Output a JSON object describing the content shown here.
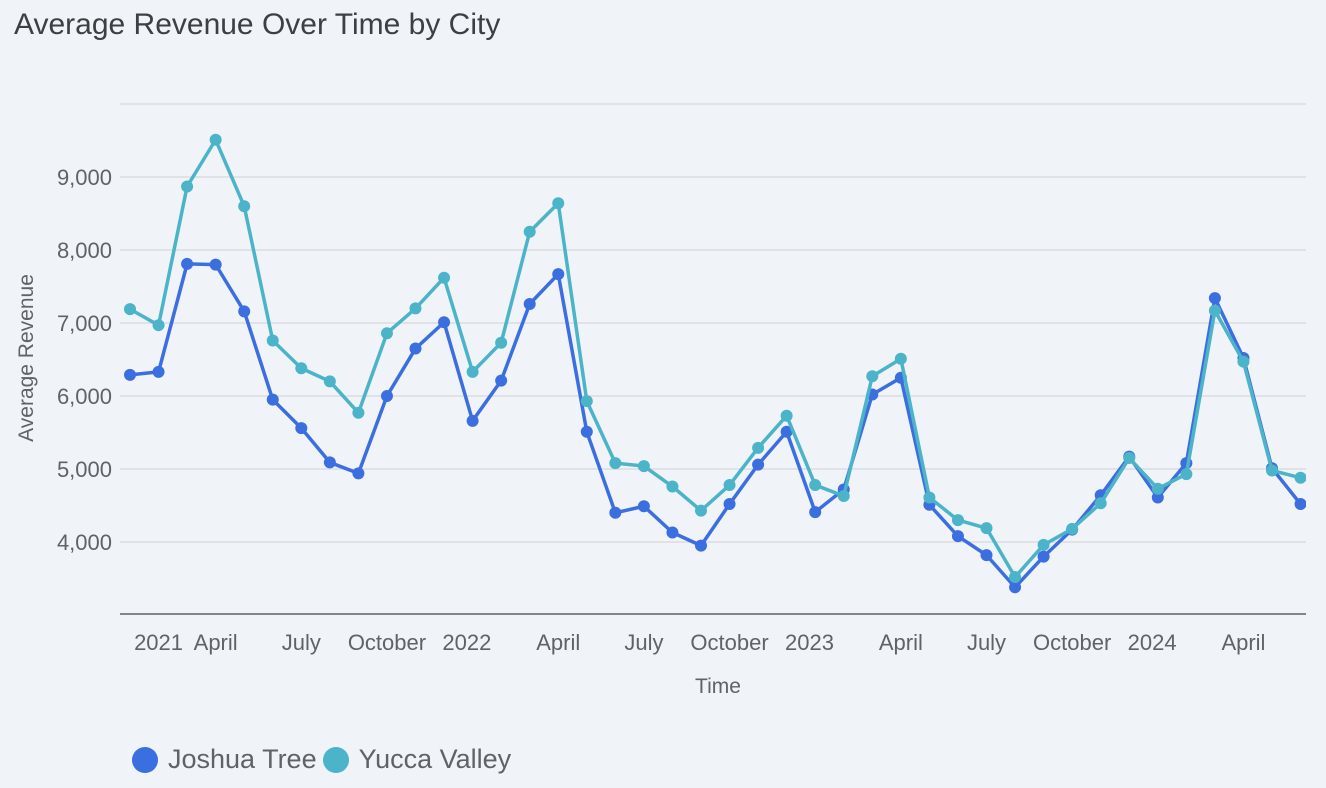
{
  "chart_data": {
    "type": "line",
    "title": "Average Revenue Over Time by City",
    "xlabel": "Time",
    "ylabel": "Average Revenue",
    "ylim": [
      3000,
      10000
    ],
    "yticks": [
      4000,
      5000,
      6000,
      7000,
      8000,
      9000
    ],
    "ytick_labels": [
      "4,000",
      "5,000",
      "6,000",
      "7,000",
      "8,000",
      "9,000"
    ],
    "grid": true,
    "legend_position": "bottom-left",
    "x_start": "2021-01",
    "x_count": 42,
    "xtick_labels": [
      {
        "label": "2021",
        "month_index": 1
      },
      {
        "label": "April",
        "month_index": 3
      },
      {
        "label": "July",
        "month_index": 6
      },
      {
        "label": "October",
        "month_index": 9
      },
      {
        "label": "2022",
        "month_index": 11.8
      },
      {
        "label": "April",
        "month_index": 15
      },
      {
        "label": "July",
        "month_index": 18
      },
      {
        "label": "October",
        "month_index": 21
      },
      {
        "label": "2023",
        "month_index": 23.8
      },
      {
        "label": "April",
        "month_index": 27
      },
      {
        "label": "July",
        "month_index": 30
      },
      {
        "label": "October",
        "month_index": 33
      },
      {
        "label": "2024",
        "month_index": 35.8
      },
      {
        "label": "April",
        "month_index": 39
      }
    ],
    "series": [
      {
        "name": "Joshua Tree",
        "color": "#3b6fe0",
        "values": [
          6290,
          6330,
          7810,
          7800,
          7160,
          5950,
          5560,
          5090,
          4940,
          6000,
          6650,
          7010,
          5660,
          6210,
          7260,
          7670,
          5510,
          4400,
          4490,
          4130,
          3950,
          4520,
          5060,
          5510,
          4410,
          4720,
          6020,
          6250,
          4510,
          4080,
          3820,
          3380,
          3800,
          4170,
          4640,
          5170,
          4610,
          5080,
          7340,
          6520,
          5010,
          4520
        ]
      },
      {
        "name": "Yucca Valley",
        "color": "#4bb4c8",
        "values": [
          7190,
          6970,
          8870,
          9510,
          8600,
          6760,
          6380,
          6200,
          5770,
          6860,
          7200,
          7620,
          6330,
          6730,
          8250,
          8640,
          5930,
          5080,
          5040,
          4760,
          4430,
          4780,
          5290,
          5730,
          4780,
          4630,
          6270,
          6510,
          4610,
          4300,
          4190,
          3520,
          3960,
          4180,
          4530,
          5150,
          4730,
          4930,
          7170,
          6470,
          4980,
          4880
        ]
      }
    ]
  }
}
